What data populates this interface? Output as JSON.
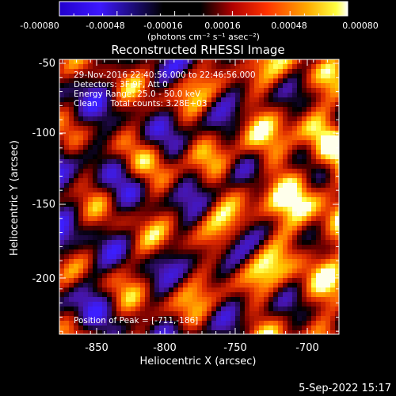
{
  "colorbar": {
    "tick_labels": [
      "-0.00080",
      "-0.00048",
      "-0.00016",
      "0.00016",
      "0.00048",
      "0.00080"
    ],
    "units": "(photons cm⁻² s⁻¹ asec⁻²)",
    "range": [
      -0.0008,
      0.0008
    ],
    "colormap": "blue-black-red-yellow-white"
  },
  "plot": {
    "title": "Reconstructed RHESSI Image",
    "info_lines": [
      "29-Nov-2016 22:40:56.000 to 22:46:56.000",
      "Detectors: 3F 9F, Att 0",
      "Energy Range: 25.0 - 50.0 keV",
      "Clean     Total counts: 3.28E+03"
    ],
    "peak_label": "Position of Peak = [-711,-186]",
    "x_axis_label": "Heliocentric X (arcsec)",
    "y_axis_label": "Heliocentric Y (arcsec)",
    "x_ticks": [
      "-850",
      "-800",
      "-750",
      "-700"
    ],
    "y_ticks": [
      "-50",
      "-100",
      "-150",
      "-200"
    ],
    "x_range": [
      -874,
      -678
    ],
    "y_range": [
      -47,
      -242
    ],
    "grid": false
  },
  "footer": {
    "date": "5-Sep-2022 15:17"
  }
}
